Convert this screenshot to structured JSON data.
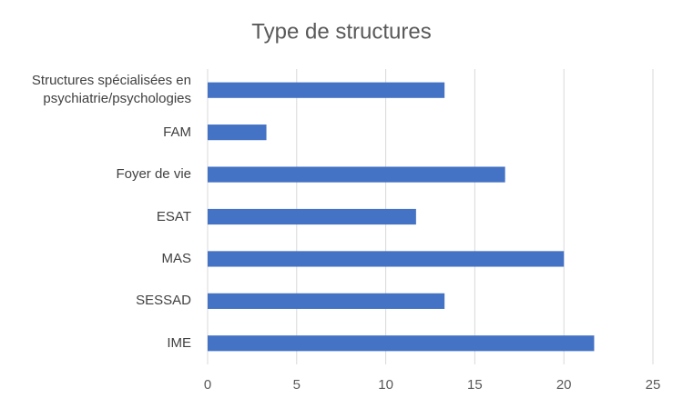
{
  "chart_data": {
    "type": "bar",
    "orientation": "horizontal",
    "title": "Type de structures",
    "categories": [
      "Structures spécialisées en psychiatrie/psychologies",
      "FAM",
      "Foyer de vie",
      "ESAT",
      "MAS",
      "SESSAD",
      "IME"
    ],
    "values": [
      13.3,
      3.3,
      16.7,
      11.7,
      20,
      13.3,
      21.7
    ],
    "color": "#4472c4",
    "xlim": [
      0,
      25
    ],
    "xticks": [
      0,
      5,
      10,
      15,
      20,
      25
    ],
    "grid": true
  }
}
